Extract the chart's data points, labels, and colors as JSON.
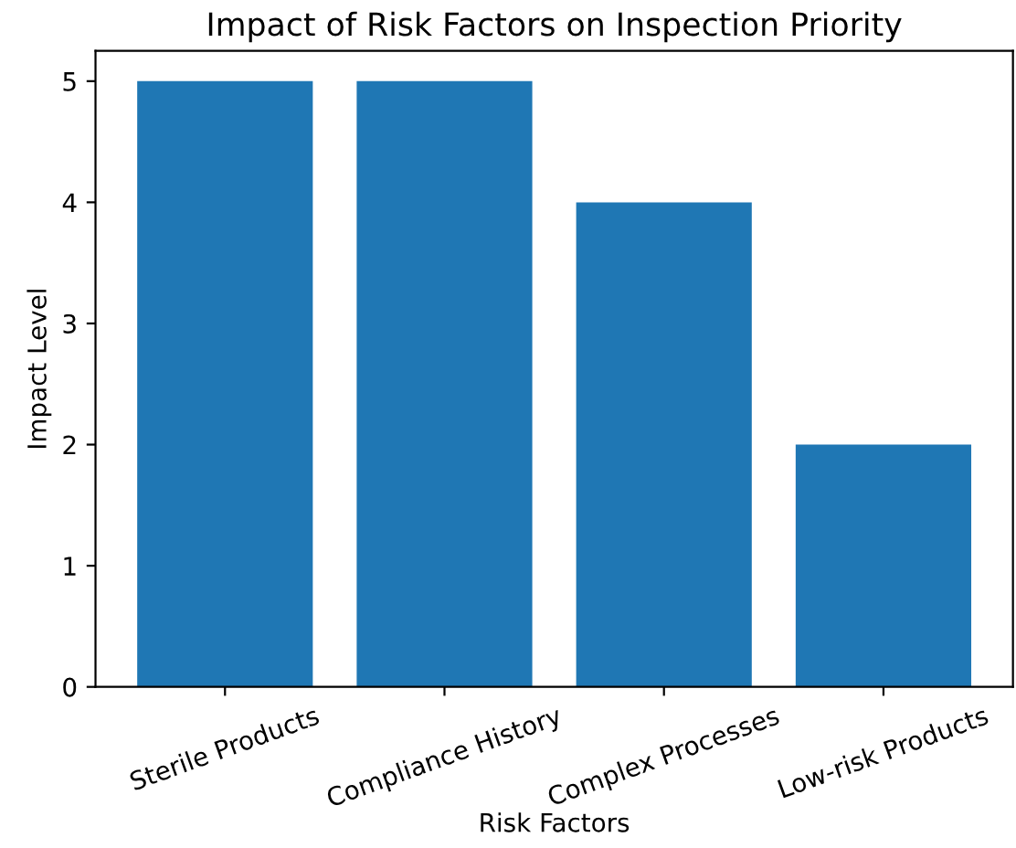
{
  "chart_data": {
    "type": "bar",
    "title": "Impact of Risk Factors on Inspection Priority",
    "xlabel": "Risk Factors",
    "ylabel": "Impact Level",
    "categories": [
      "Sterile Products",
      "Compliance History",
      "Complex Processes",
      "Low-risk Products"
    ],
    "values": [
      5,
      5,
      4,
      2
    ],
    "color": "#1f77b4",
    "ylim": [
      0,
      5.25
    ],
    "yticks": [
      0,
      1,
      2,
      3,
      4,
      5
    ],
    "grid": false,
    "legend": false
  }
}
